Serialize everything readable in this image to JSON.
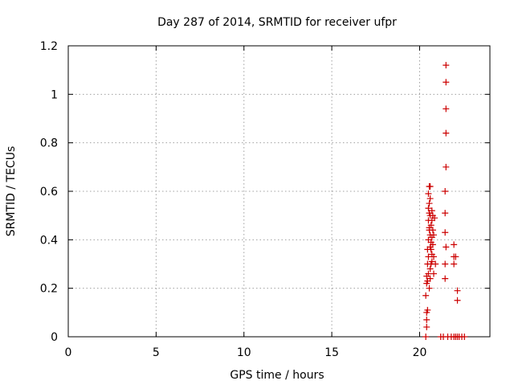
{
  "chart_data": {
    "type": "scatter",
    "title": "Day 287 of 2014, SRMTID for receiver ufpr",
    "xlabel": "GPS time / hours",
    "ylabel": "SRMTID / TECUs",
    "xlim": [
      0,
      24
    ],
    "ylim": [
      0,
      1.2
    ],
    "xticks": [
      0,
      5,
      10,
      15,
      20
    ],
    "yticks": [
      0,
      0.2,
      0.4,
      0.6,
      0.8,
      1,
      1.2
    ],
    "xtick_labels": [
      "0",
      "5",
      "10",
      "15",
      "20"
    ],
    "ytick_labels": [
      "0",
      "0.2",
      "0.4",
      "0.6",
      "0.8",
      "1",
      "1.2"
    ],
    "grid": true,
    "marker": "+",
    "color": "#cc0000",
    "series": [
      {
        "name": "",
        "points": [
          [
            20.35,
            0.0
          ],
          [
            20.4,
            0.04
          ],
          [
            20.4,
            0.07
          ],
          [
            20.4,
            0.1
          ],
          [
            20.45,
            0.11
          ],
          [
            20.35,
            0.17
          ],
          [
            20.4,
            0.22
          ],
          [
            20.45,
            0.23
          ],
          [
            20.4,
            0.25
          ],
          [
            20.5,
            0.26
          ],
          [
            20.45,
            0.3
          ],
          [
            20.5,
            0.33
          ],
          [
            20.45,
            0.36
          ],
          [
            20.5,
            0.4
          ],
          [
            20.55,
            0.44
          ],
          [
            20.5,
            0.48
          ],
          [
            20.55,
            0.51
          ],
          [
            20.5,
            0.53
          ],
          [
            20.55,
            0.55
          ],
          [
            20.6,
            0.57
          ],
          [
            20.5,
            0.59
          ],
          [
            20.55,
            0.62
          ],
          [
            20.6,
            0.62
          ],
          [
            20.55,
            0.2
          ],
          [
            20.6,
            0.24
          ],
          [
            20.6,
            0.28
          ],
          [
            20.65,
            0.3
          ],
          [
            20.65,
            0.36
          ],
          [
            20.6,
            0.42
          ],
          [
            20.65,
            0.46
          ],
          [
            20.6,
            0.5
          ],
          [
            20.7,
            0.52
          ],
          [
            20.75,
            0.5
          ],
          [
            20.7,
            0.48
          ],
          [
            20.75,
            0.44
          ],
          [
            20.7,
            0.41
          ],
          [
            20.75,
            0.38
          ],
          [
            20.7,
            0.34
          ],
          [
            20.8,
            0.33
          ],
          [
            20.8,
            0.42
          ],
          [
            20.85,
            0.49
          ],
          [
            20.8,
            0.26
          ],
          [
            20.9,
            0.3
          ],
          [
            20.65,
            0.39
          ],
          [
            20.7,
            0.31
          ],
          [
            20.55,
            0.45
          ],
          [
            20.6,
            0.37
          ],
          [
            21.45,
            0.24
          ],
          [
            21.45,
            0.3
          ],
          [
            21.5,
            0.37
          ],
          [
            21.45,
            0.43
          ],
          [
            21.45,
            0.51
          ],
          [
            21.45,
            0.6
          ],
          [
            21.5,
            0.7
          ],
          [
            21.5,
            0.84
          ],
          [
            21.5,
            0.94
          ],
          [
            21.5,
            1.05
          ],
          [
            21.5,
            1.12
          ],
          [
            21.95,
            0.38
          ],
          [
            21.95,
            0.33
          ],
          [
            22.05,
            0.33
          ],
          [
            21.95,
            0.3
          ],
          [
            22.15,
            0.19
          ],
          [
            22.15,
            0.15
          ],
          [
            21.2,
            0.0
          ],
          [
            21.35,
            0.0
          ],
          [
            21.6,
            0.0
          ],
          [
            21.8,
            0.0
          ],
          [
            21.95,
            0.0
          ],
          [
            22.05,
            0.0
          ],
          [
            22.15,
            0.0
          ],
          [
            22.25,
            0.0
          ],
          [
            22.4,
            0.0
          ],
          [
            22.55,
            0.0
          ]
        ]
      }
    ]
  }
}
